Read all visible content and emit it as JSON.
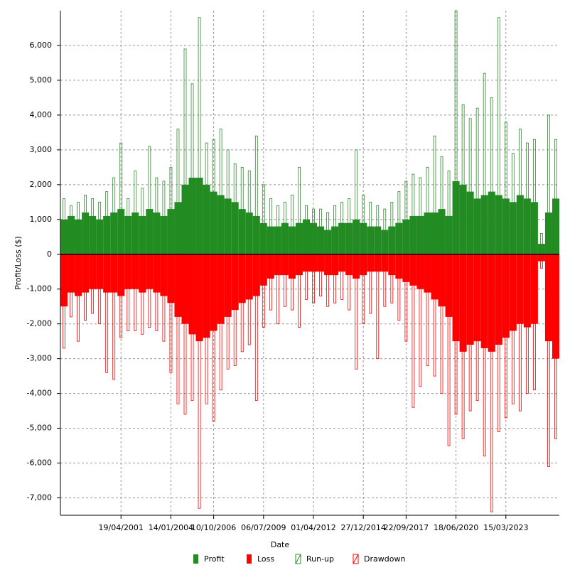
{
  "chart_data": {
    "type": "bar",
    "x_label": "Date",
    "y_label": "Profit/Loss ($)",
    "categories": [
      null,
      null,
      null,
      null,
      null,
      null,
      null,
      null,
      "19/04/2001",
      null,
      null,
      null,
      null,
      null,
      null,
      "14/01/2004",
      null,
      null,
      null,
      null,
      null,
      "10/10/2006",
      null,
      null,
      null,
      null,
      null,
      null,
      "06/07/2009",
      null,
      null,
      null,
      null,
      null,
      null,
      "01/04/2012",
      null,
      null,
      null,
      null,
      null,
      null,
      "27/12/2014",
      null,
      null,
      null,
      null,
      null,
      "22/09/2017",
      null,
      null,
      null,
      null,
      null,
      null,
      "18/06/2020",
      null,
      null,
      null,
      null,
      null,
      null,
      "15/03/2023",
      null,
      null,
      null,
      null,
      null,
      null,
      null
    ],
    "series": [
      {
        "name": "Run-up",
        "color": "#2e8b2e",
        "style": "hatch",
        "values": [
          1600,
          1400,
          1500,
          1700,
          1600,
          1500,
          1800,
          2200,
          3200,
          1600,
          2400,
          1900,
          3100,
          2200,
          2100,
          2500,
          3600,
          5900,
          4900,
          6800,
          3200,
          3300,
          3600,
          3000,
          2600,
          2500,
          2400,
          3400,
          2000,
          1600,
          1400,
          1500,
          1700,
          2500,
          1400,
          1300,
          1300,
          1200,
          1400,
          1500,
          1600,
          3000,
          1700,
          1500,
          1400,
          1300,
          1500,
          1800,
          2100,
          2300,
          2200,
          2500,
          3400,
          2800,
          2400,
          7000,
          4300,
          3900,
          4200,
          5200,
          4500,
          6800,
          3800,
          2900,
          3600,
          3200,
          3300,
          600,
          4000,
          3300
        ]
      },
      {
        "name": "Drawdown",
        "color": "#ff0000",
        "style": "hatch",
        "values": [
          -2700,
          -1800,
          -2500,
          -1900,
          -1700,
          -2000,
          -3400,
          -3600,
          -2400,
          -2200,
          -2200,
          -2300,
          -2100,
          -2200,
          -2500,
          -3400,
          -4300,
          -4600,
          -4200,
          -7300,
          -4300,
          -4800,
          -3900,
          -3300,
          -3200,
          -2800,
          -2600,
          -4200,
          -2100,
          -1600,
          -2000,
          -1500,
          -1600,
          -2100,
          -1300,
          -1400,
          -1200,
          -1500,
          -1400,
          -1300,
          -1600,
          -3300,
          -2000,
          -1700,
          -3000,
          -1500,
          -1400,
          -1900,
          -2500,
          -4400,
          -3800,
          -3200,
          -3500,
          -4000,
          -5500,
          -4600,
          -5300,
          -4500,
          -4200,
          -5800,
          -7400,
          -5100,
          -4700,
          -4300,
          -4500,
          -4000,
          -3900,
          -400,
          -6100,
          -5300
        ]
      },
      {
        "name": "Profit",
        "color": "#228b22",
        "style": "solid",
        "values": [
          1000,
          1100,
          1000,
          1200,
          1100,
          1000,
          1100,
          1200,
          1300,
          1100,
          1200,
          1100,
          1300,
          1200,
          1100,
          1300,
          1500,
          2000,
          2200,
          2200,
          2000,
          1800,
          1700,
          1600,
          1500,
          1300,
          1200,
          1100,
          900,
          800,
          800,
          900,
          800,
          900,
          1000,
          900,
          800,
          700,
          800,
          900,
          900,
          1000,
          900,
          800,
          800,
          700,
          800,
          900,
          1000,
          1100,
          1100,
          1200,
          1200,
          1300,
          1100,
          2100,
          2000,
          1800,
          1600,
          1700,
          1800,
          1700,
          1600,
          1500,
          1700,
          1600,
          1500,
          300,
          1200,
          1600
        ]
      },
      {
        "name": "Loss",
        "color": "#ff0000",
        "style": "solid",
        "values": [
          -1500,
          -1100,
          -1200,
          -1100,
          -1000,
          -1000,
          -1100,
          -1100,
          -1200,
          -1000,
          -1000,
          -1100,
          -1000,
          -1100,
          -1200,
          -1400,
          -1800,
          -2000,
          -2300,
          -2500,
          -2400,
          -2200,
          -2000,
          -1800,
          -1600,
          -1400,
          -1300,
          -1200,
          -900,
          -700,
          -600,
          -600,
          -700,
          -600,
          -500,
          -500,
          -500,
          -600,
          -600,
          -500,
          -600,
          -700,
          -600,
          -500,
          -500,
          -500,
          -600,
          -700,
          -800,
          -900,
          -1000,
          -1100,
          -1300,
          -1500,
          -1800,
          -2500,
          -2800,
          -2600,
          -2500,
          -2700,
          -2800,
          -2600,
          -2400,
          -2200,
          -2000,
          -2100,
          -2000,
          -200,
          -2500,
          -3000
        ]
      }
    ],
    "legend_order": [
      2,
      3,
      0,
      1
    ],
    "ylim": [
      -7500,
      7000
    ],
    "yticks": [
      {
        "value": -7000,
        "label": "-7,000"
      },
      {
        "value": -6000,
        "label": "-6,000"
      },
      {
        "value": -5000,
        "label": "-5,000"
      },
      {
        "value": -4000,
        "label": "-4,000"
      },
      {
        "value": -3000,
        "label": "-3,000"
      },
      {
        "value": -2000,
        "label": "-2,000"
      },
      {
        "value": -1000,
        "label": "-1,000"
      },
      0,
      {
        "value": 1000,
        "label": "1,000"
      },
      {
        "value": 2000,
        "label": "2,000"
      },
      {
        "value": 3000,
        "label": "3,000"
      },
      {
        "value": 4000,
        "label": "4,000"
      },
      {
        "value": 5000,
        "label": "5,000"
      },
      {
        "value": 6000,
        "label": "6,000"
      }
    ],
    "grid": true,
    "legend": "bottom"
  }
}
